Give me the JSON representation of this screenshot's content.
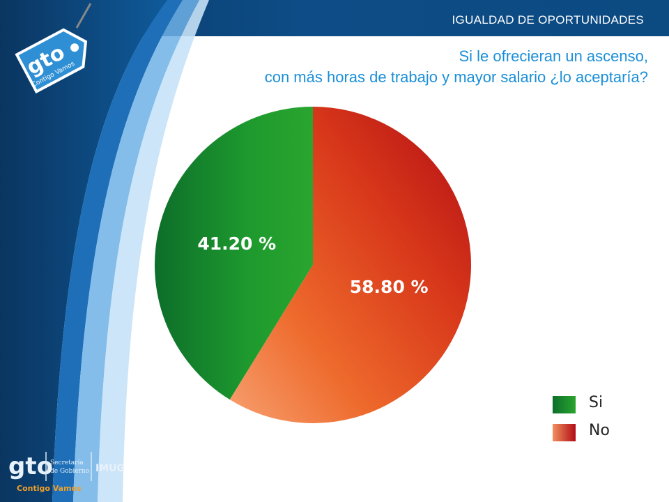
{
  "header": {
    "title": "IGUALDAD DE OPORTUNIDADES"
  },
  "question": {
    "line1": "Si le ofrecieran un ascenso,",
    "line2": "con más horas de trabajo y mayor salario ¿lo aceptaría?"
  },
  "colors": {
    "si": "#1e9a2e",
    "no": "#d8381a",
    "header_bg": "#0d4c86",
    "question_text": "#1a8fd8"
  },
  "chart_data": {
    "type": "pie",
    "categories": [
      "Si",
      "No"
    ],
    "values": [
      41.2,
      58.8
    ],
    "data_labels": [
      "41.20 %",
      "58.80 %"
    ],
    "legend_position": "bottom-right"
  },
  "logos": {
    "tag_logo": {
      "icon": "gto-tag-logo",
      "text": "gto",
      "subtitle": "Contigo Vamos"
    },
    "footer": {
      "gto_text": "gto",
      "slogan": "Contigo Vamos",
      "dept_line1": "Secretaría",
      "dept_line2": "de Gobierno",
      "imug_text": "IMUG"
    }
  }
}
